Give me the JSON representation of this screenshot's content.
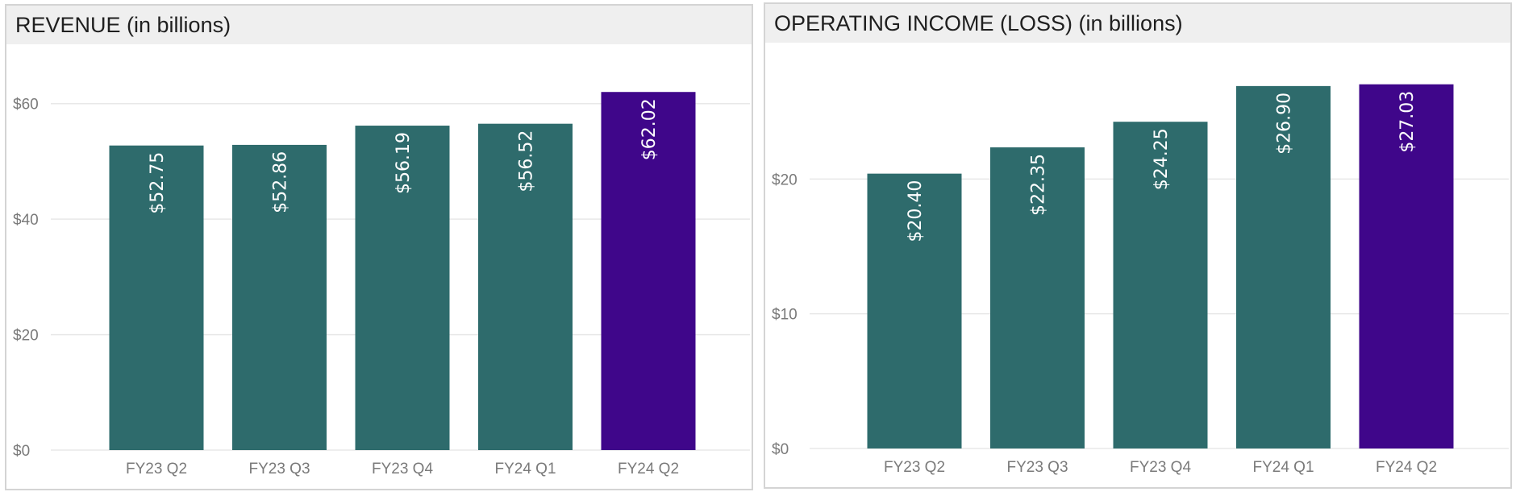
{
  "colors": {
    "bar": "#2e6b6c",
    "highlight": "#3f068a",
    "grid": "#e8e8e8",
    "header_bg": "#efefef"
  },
  "chart_data": [
    {
      "type": "bar",
      "title": "REVENUE (in billions)",
      "categories": [
        "FY23 Q2",
        "FY23 Q3",
        "FY23 Q4",
        "FY24 Q1",
        "FY24 Q2"
      ],
      "values": [
        52.75,
        52.86,
        56.19,
        56.52,
        62.02
      ],
      "data_labels": [
        "$52.75",
        "$52.86",
        "$56.19",
        "$56.52",
        "$62.02"
      ],
      "y_ticks": [
        0,
        20,
        40,
        60
      ],
      "y_tick_labels": [
        "$0",
        "$20",
        "$40",
        "$60"
      ],
      "ylim": [
        0,
        70
      ],
      "highlight_index": 4,
      "grid": true
    },
    {
      "type": "bar",
      "title": "OPERATING INCOME (LOSS) (in billions)",
      "categories": [
        "FY23 Q2",
        "FY23 Q3",
        "FY23 Q4",
        "FY24 Q1",
        "FY24 Q2"
      ],
      "values": [
        20.4,
        22.35,
        24.25,
        26.9,
        27.03
      ],
      "data_labels": [
        "$20.40",
        "$22.35",
        "$24.25",
        "$26.90",
        "$27.03"
      ],
      "y_ticks": [
        0,
        10,
        20
      ],
      "y_tick_labels": [
        "$0",
        "$10",
        "$20"
      ],
      "ylim": [
        0,
        30
      ],
      "highlight_index": 4,
      "grid": true
    }
  ]
}
